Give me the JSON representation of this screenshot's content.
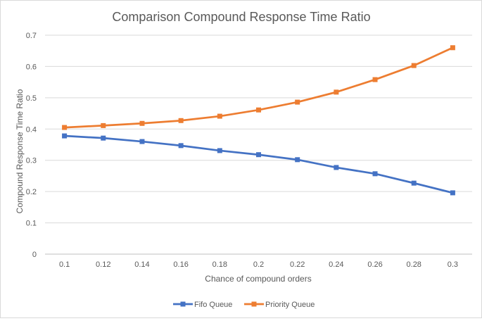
{
  "chart_data": {
    "type": "line",
    "title": "Comparison Compound Response Time Ratio",
    "xlabel": "Chance of compound orders",
    "ylabel": "Compound Response Time Ratio",
    "categories": [
      "0.1",
      "0.12",
      "0.14",
      "0.16",
      "0.18",
      "0.2",
      "0.22",
      "0.24",
      "0.26",
      "0.28",
      "0.3"
    ],
    "ylim": [
      0,
      0.7
    ],
    "yticks": [
      "0",
      "0.1",
      "0.2",
      "0.3",
      "0.4",
      "0.5",
      "0.6",
      "0.7"
    ],
    "grid": true,
    "legend": "bottom",
    "series": [
      {
        "name": "Fifo Queue",
        "color": "#4472c4",
        "values": [
          0.378,
          0.371,
          0.36,
          0.347,
          0.331,
          0.318,
          0.302,
          0.277,
          0.257,
          0.227,
          0.196
        ]
      },
      {
        "name": "Priority Queue",
        "color": "#ed7d31",
        "values": [
          0.405,
          0.411,
          0.418,
          0.427,
          0.441,
          0.461,
          0.486,
          0.518,
          0.558,
          0.603,
          0.66
        ]
      }
    ]
  }
}
